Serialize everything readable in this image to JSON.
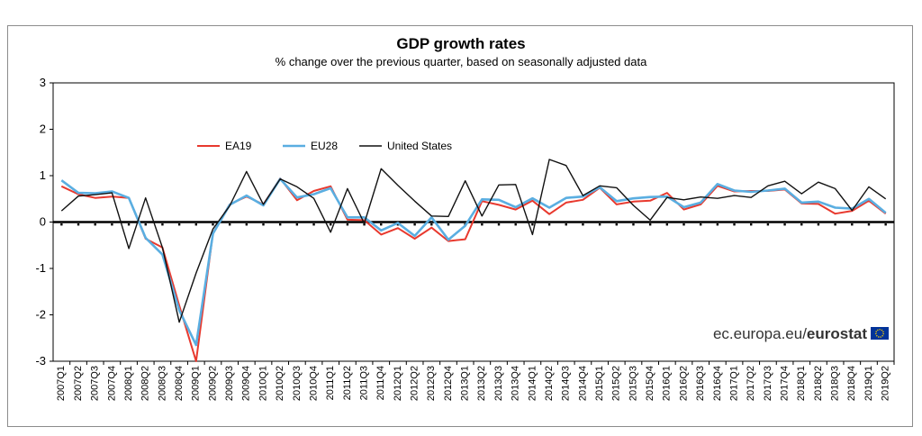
{
  "chart_data": {
    "type": "line",
    "title": "GDP growth rates",
    "subtitle": "% change over the previous quarter, based on seasonally adjusted data",
    "ylim": [
      -3,
      3
    ],
    "yticks": [
      3,
      2,
      1,
      0,
      -1,
      -2,
      -3
    ],
    "grid": false,
    "legend_placement": "top-left",
    "categories": [
      "2007Q1",
      "2007Q2",
      "2007Q3",
      "2007Q4",
      "2008Q1",
      "2008Q2",
      "2008Q3",
      "2008Q4",
      "2009Q1",
      "2009Q2",
      "2009Q3",
      "2009Q4",
      "2010Q1",
      "2010Q2",
      "2010Q3",
      "2010Q4",
      "2011Q1",
      "2011Q2",
      "2011Q3",
      "2011Q4",
      "2012Q1",
      "2012Q2",
      "2012Q3",
      "2012Q4",
      "2013Q1",
      "2013Q2",
      "2013Q3",
      "2013Q4",
      "2014Q1",
      "2014Q2",
      "2014Q3",
      "2014Q4",
      "2015Q1",
      "2015Q2",
      "2015Q3",
      "2015Q4",
      "2016Q1",
      "2016Q2",
      "2016Q3",
      "2016Q4",
      "2017Q1",
      "2017Q2",
      "2017Q3",
      "2017Q4",
      "2018Q1",
      "2018Q2",
      "2018Q3",
      "2018Q4",
      "2019Q1",
      "2019Q2"
    ],
    "series": [
      {
        "name": "EA19",
        "color": "#e8392e",
        "width": 2,
        "values": [
          0.77,
          0.6,
          0.52,
          0.55,
          0.52,
          -0.36,
          -0.55,
          -1.8,
          -3.0,
          -0.24,
          0.38,
          0.55,
          0.38,
          0.94,
          0.47,
          0.67,
          0.77,
          0.05,
          0.04,
          -0.27,
          -0.13,
          -0.36,
          -0.12,
          -0.41,
          -0.37,
          0.45,
          0.37,
          0.27,
          0.46,
          0.17,
          0.42,
          0.48,
          0.74,
          0.38,
          0.44,
          0.46,
          0.63,
          0.27,
          0.38,
          0.78,
          0.66,
          0.67,
          0.67,
          0.7,
          0.4,
          0.39,
          0.18,
          0.24,
          0.46,
          0.18
        ]
      },
      {
        "name": "EU28",
        "color": "#5aaee1",
        "width": 2.6,
        "values": [
          0.9,
          0.63,
          0.62,
          0.66,
          0.52,
          -0.34,
          -0.7,
          -1.9,
          -2.65,
          -0.25,
          0.37,
          0.57,
          0.36,
          0.93,
          0.53,
          0.6,
          0.73,
          0.1,
          0.1,
          -0.18,
          -0.02,
          -0.3,
          0.1,
          -0.38,
          -0.08,
          0.49,
          0.48,
          0.32,
          0.51,
          0.31,
          0.52,
          0.55,
          0.75,
          0.45,
          0.51,
          0.54,
          0.55,
          0.32,
          0.42,
          0.82,
          0.68,
          0.65,
          0.68,
          0.72,
          0.42,
          0.44,
          0.31,
          0.29,
          0.5,
          0.2
        ]
      },
      {
        "name": "United States",
        "color": "#111111",
        "width": 1.4,
        "values": [
          0.24,
          0.56,
          0.59,
          0.63,
          -0.57,
          0.52,
          -0.55,
          -2.16,
          -1.1,
          -0.15,
          0.35,
          1.09,
          0.38,
          0.93,
          0.76,
          0.51,
          -0.22,
          0.72,
          -0.03,
          1.15,
          0.79,
          0.45,
          0.13,
          0.12,
          0.89,
          0.13,
          0.8,
          0.81,
          -0.27,
          1.35,
          1.22,
          0.57,
          0.78,
          0.74,
          0.36,
          0.04,
          0.53,
          0.48,
          0.54,
          0.51,
          0.57,
          0.53,
          0.78,
          0.88,
          0.61,
          0.86,
          0.72,
          0.25,
          0.76,
          0.5
        ]
      }
    ]
  },
  "brand": {
    "domain_text": "ec.europa.eu/",
    "name_text": "eurostat"
  }
}
